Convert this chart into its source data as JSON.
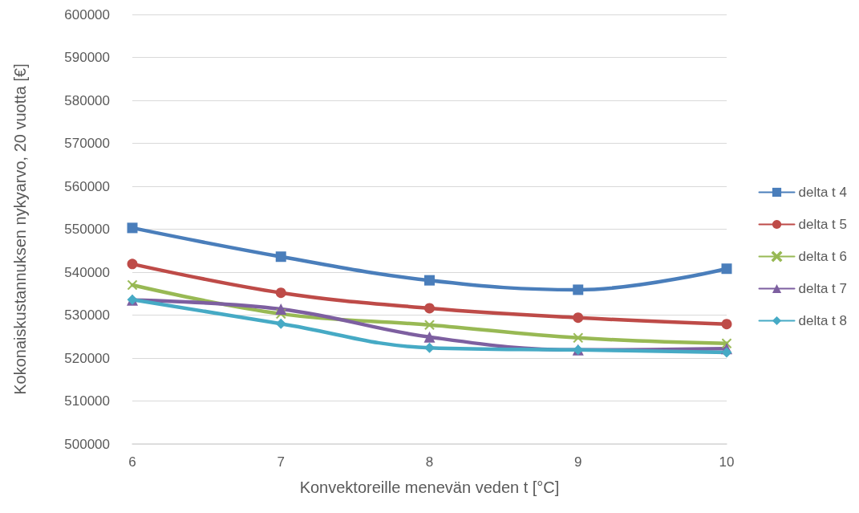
{
  "chart_data": {
    "type": "line",
    "xlabel": "Konvektoreille menevän veden t [°C]",
    "ylabel": "Kokonaiskustannuksen nykyarvo, 20 vuotta [€]",
    "categories": [
      "6",
      "7",
      "8",
      "9",
      "10"
    ],
    "series": [
      {
        "name": "delta t 4",
        "color": "#4a7ebb",
        "marker": "square",
        "values": [
          550300,
          543600,
          538100,
          535900,
          540800
        ]
      },
      {
        "name": "delta t 5",
        "color": "#be4b48",
        "marker": "circle",
        "values": [
          541900,
          535200,
          531600,
          529400,
          527900
        ]
      },
      {
        "name": "delta t 6",
        "color": "#98b954",
        "marker": "cross",
        "values": [
          537000,
          530300,
          527700,
          524700,
          523400
        ]
      },
      {
        "name": "delta t 7",
        "color": "#7d5fa0",
        "marker": "triangle",
        "values": [
          533500,
          531400,
          524900,
          521900,
          522200
        ]
      },
      {
        "name": "delta t 8",
        "color": "#46aac5",
        "marker": "diamond",
        "values": [
          533600,
          528000,
          522400,
          521900,
          521300
        ]
      }
    ],
    "ylim": [
      500000,
      600000
    ],
    "yticks": [
      500000,
      510000,
      520000,
      530000,
      540000,
      550000,
      560000,
      570000,
      580000,
      590000,
      600000
    ],
    "grid": "y",
    "legend": "right",
    "line_style": "solid"
  }
}
